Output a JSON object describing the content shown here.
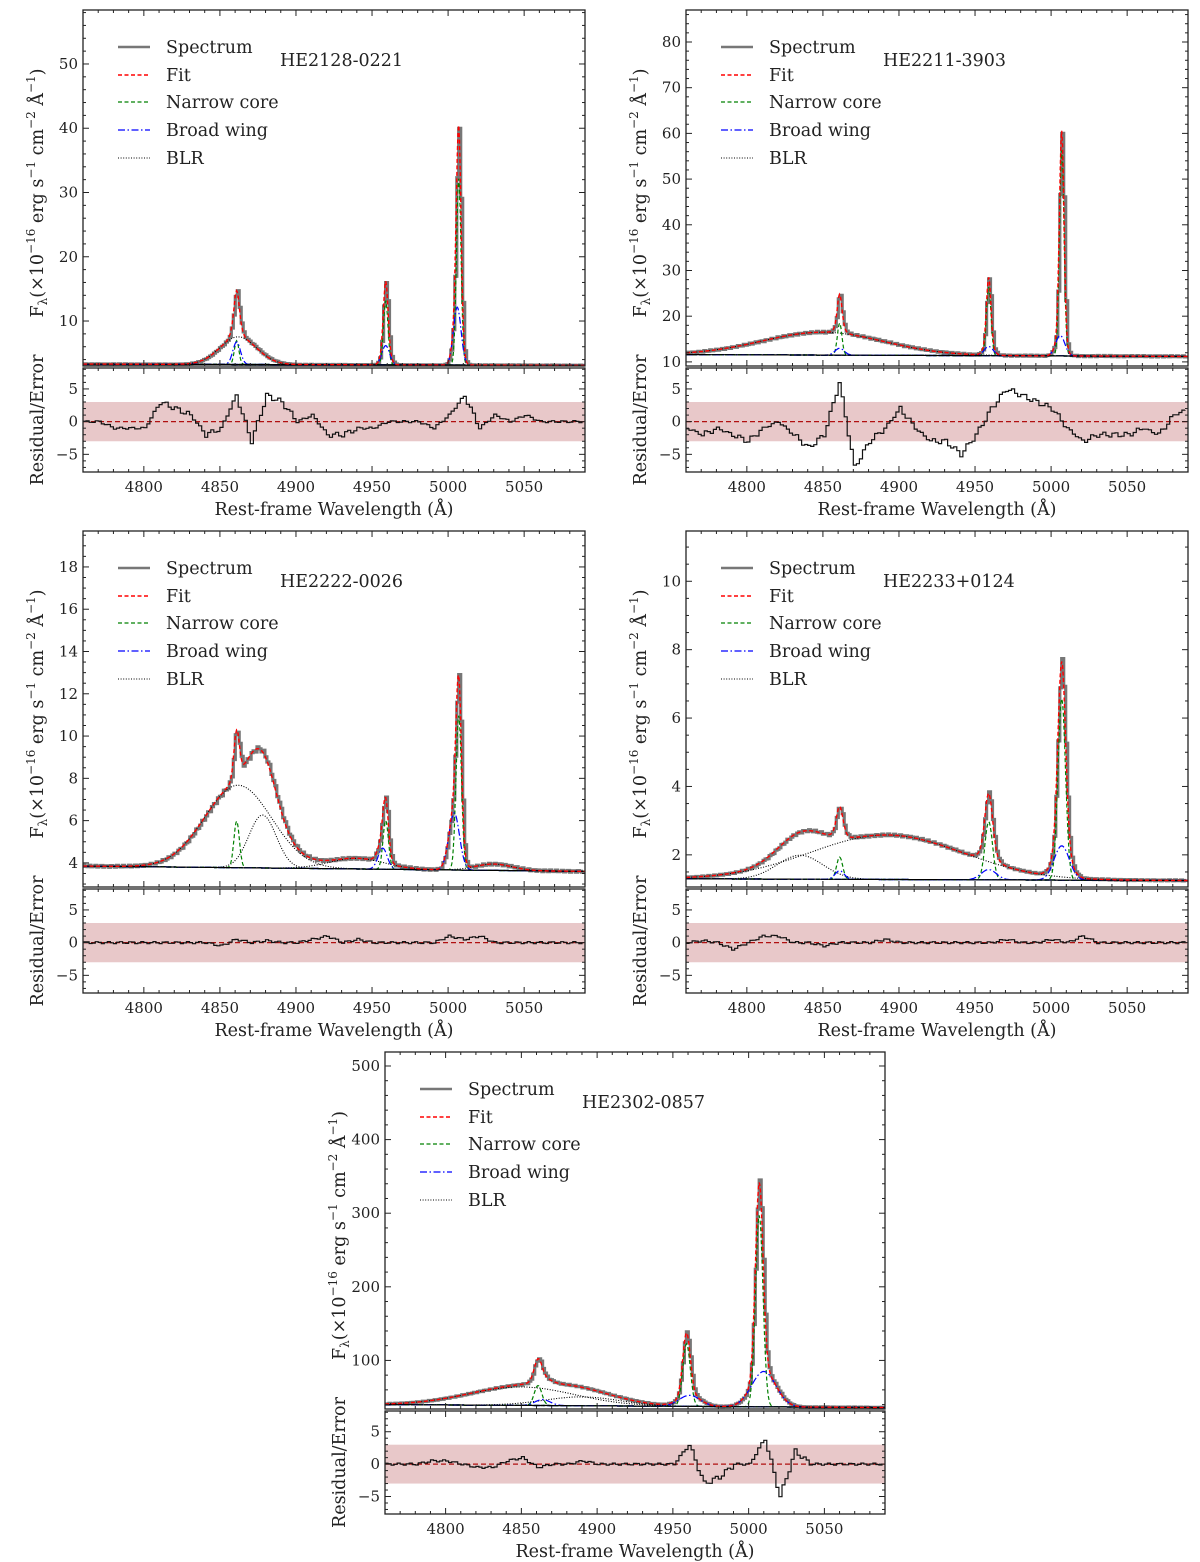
{
  "legend": [
    "Spectrum",
    "Fit",
    "Narrow core",
    "Broad wing",
    "BLR"
  ],
  "xlabel": "Rest-frame Wavelength (Å)",
  "ylabel": "F_{λ}(×10^{−16} erg s^{−1} cm^{−2} Å^{−1})",
  "residual_ylabel": "Residual/Error",
  "colors": {
    "spectrum": "#777777",
    "fit": "#ff0000",
    "narrow": "#008000",
    "wing": "#0000ff",
    "blr": "#000000",
    "band": "#e8c8c9",
    "zero": "#b01010"
  },
  "xticks": [
    4800,
    4850,
    4900,
    4950,
    5000,
    5050
  ],
  "xlim": [
    4760,
    5090
  ],
  "residual_axis": {
    "ylim": [
      -7.7,
      8.2
    ],
    "yticks": [
      -5,
      0,
      5
    ],
    "yticklabels": [
      "−5",
      "0",
      "5"
    ],
    "band": 3,
    "x_start": 4760,
    "x_step": 10
  },
  "chart_data": [
    {
      "type": "line",
      "title": "HE2128-0221",
      "ylim": [
        3,
        58.4
      ],
      "yticks": [
        10,
        20,
        30,
        40,
        50
      ],
      "yminor": 2,
      "continuum": [
        3.3,
        3.1
      ],
      "components": [
        {
          "kind": "blr",
          "center": 4862,
          "sigma": 12,
          "amp": 4.3
        },
        {
          "kind": "narrow",
          "center": 4861,
          "sigma": 1.5,
          "amp": 3.7
        },
        {
          "kind": "wing",
          "center": 4861,
          "sigma": 2.5,
          "amp": 3.5
        },
        {
          "kind": "narrow",
          "center": 4959,
          "sigma": 1.5,
          "amp": 10
        },
        {
          "kind": "wing",
          "center": 4959,
          "sigma": 2.5,
          "amp": 3
        },
        {
          "kind": "narrow",
          "center": 5007,
          "sigma": 1.5,
          "amp": 29
        },
        {
          "kind": "wing",
          "center": 5006,
          "sigma": 2.5,
          "amp": 9
        }
      ],
      "residual": [
        0,
        0,
        -1,
        -1,
        -1,
        3,
        2,
        1,
        -2,
        -1,
        4,
        -3,
        4,
        3,
        0,
        1,
        -2,
        -2,
        -1,
        -1,
        0,
        0,
        0,
        -1,
        1,
        4,
        -1,
        1,
        0,
        1,
        0,
        0,
        0,
        0
      ]
    },
    {
      "type": "line",
      "title": "HE2211-3903",
      "ylim": [
        9.1,
        87
      ],
      "yticks": [
        10,
        20,
        30,
        40,
        50,
        60,
        70,
        80
      ],
      "yminor": 2,
      "continuum": [
        11.6,
        11.2
      ],
      "components": [
        {
          "kind": "blr",
          "center": 4850,
          "sigma": 40,
          "amp": 5
        },
        {
          "kind": "narrow",
          "center": 4861,
          "sigma": 1.5,
          "amp": 7
        },
        {
          "kind": "wing",
          "center": 4861,
          "sigma": 3,
          "amp": 1.5
        },
        {
          "kind": "narrow",
          "center": 4959,
          "sigma": 1.5,
          "amp": 15
        },
        {
          "kind": "wing",
          "center": 4959,
          "sigma": 3,
          "amp": 2
        },
        {
          "kind": "narrow",
          "center": 5007,
          "sigma": 1.5,
          "amp": 45
        },
        {
          "kind": "wing",
          "center": 5006,
          "sigma": 3,
          "amp": 4.5
        }
      ],
      "residual": [
        -1,
        -2,
        -1,
        -2,
        -3,
        -1,
        0,
        -2,
        -4,
        -2,
        6,
        -7,
        -3,
        -1,
        2,
        -1,
        -3,
        -3,
        -5,
        -2,
        2,
        5,
        4,
        3,
        2,
        -1,
        -3,
        -2,
        -2,
        -2,
        -1,
        -2,
        1,
        2
      ]
    },
    {
      "type": "line",
      "title": "HE2222-0026",
      "ylim": [
        2.86,
        19.7
      ],
      "yticks": [
        4,
        6,
        8,
        10,
        12,
        14,
        16,
        18
      ],
      "yminor": 0.5,
      "continuum": [
        3.85,
        3.6
      ],
      "components": [
        {
          "kind": "blr",
          "center": 4862,
          "sigma": 22,
          "amp": 3.9
        },
        {
          "kind": "blr",
          "center": 4878,
          "sigma": 9,
          "amp": 2.5
        },
        {
          "kind": "blr",
          "center": 4940,
          "sigma": 18,
          "amp": 0.5
        },
        {
          "kind": "blr",
          "center": 5030,
          "sigma": 12,
          "amp": 0.3
        },
        {
          "kind": "narrow",
          "center": 4861,
          "sigma": 1.8,
          "amp": 2.2
        },
        {
          "kind": "narrow",
          "center": 4959,
          "sigma": 1.8,
          "amp": 2.3
        },
        {
          "kind": "wing",
          "center": 4957,
          "sigma": 3,
          "amp": 1
        },
        {
          "kind": "narrow",
          "center": 5007,
          "sigma": 1.8,
          "amp": 7.3
        },
        {
          "kind": "wing",
          "center": 5004,
          "sigma": 3.5,
          "amp": 2.7
        }
      ],
      "residual": [
        0,
        0,
        0,
        0,
        0,
        0,
        0,
        0,
        0,
        -0.5,
        0.5,
        0,
        0.3,
        0,
        0,
        0.5,
        1,
        0,
        0.5,
        0,
        0,
        0,
        0,
        0,
        1,
        0.5,
        1,
        0,
        0,
        0,
        0,
        0,
        0,
        0
      ]
    },
    {
      "type": "line",
      "title": "HE2233+0124",
      "ylim": [
        1.06,
        11.47
      ],
      "yticks": [
        2,
        4,
        6,
        8,
        10
      ],
      "yminor": 0.5,
      "continuum": [
        1.3,
        1.25
      ],
      "components": [
        {
          "kind": "blr",
          "center": 4892,
          "sigma": 50,
          "amp": 1.3
        },
        {
          "kind": "blr",
          "center": 4835,
          "sigma": 15,
          "amp": 0.7
        },
        {
          "kind": "narrow",
          "center": 4861,
          "sigma": 2,
          "amp": 0.65
        },
        {
          "kind": "wing",
          "center": 4861,
          "sigma": 3,
          "amp": 0.25
        },
        {
          "kind": "narrow",
          "center": 4959,
          "sigma": 2.5,
          "amp": 1.7
        },
        {
          "kind": "wing",
          "center": 4959,
          "sigma": 5,
          "amp": 0.3
        },
        {
          "kind": "narrow",
          "center": 5007,
          "sigma": 2.5,
          "amp": 5.3
        },
        {
          "kind": "wing",
          "center": 5007,
          "sigma": 5,
          "amp": 1
        }
      ],
      "residual": [
        0,
        0.3,
        0,
        -1,
        0,
        1,
        1,
        0,
        0,
        -0.5,
        0,
        0,
        0,
        0.5,
        0,
        0,
        0,
        0,
        0,
        0,
        0,
        0.5,
        0,
        0,
        0.5,
        0,
        1,
        0,
        0,
        0,
        0,
        0,
        0,
        0
      ]
    },
    {
      "type": "line",
      "title": "HE2302-0857",
      "ylim": [
        34,
        519
      ],
      "yticks": [
        100,
        200,
        300,
        400,
        500
      ],
      "yminor": 20,
      "continuum": [
        40,
        36
      ],
      "components": [
        {
          "kind": "blr",
          "center": 4850,
          "sigma": 35,
          "amp": 25
        },
        {
          "kind": "blr",
          "center": 4890,
          "sigma": 25,
          "amp": 12
        },
        {
          "kind": "narrow",
          "center": 4861,
          "sigma": 2.5,
          "amp": 27
        },
        {
          "kind": "wing",
          "center": 4864,
          "sigma": 5,
          "amp": 8
        },
        {
          "kind": "narrow",
          "center": 4959,
          "sigma": 2.5,
          "amp": 85
        },
        {
          "kind": "wing",
          "center": 4961,
          "sigma": 7,
          "amp": 15
        },
        {
          "kind": "narrow",
          "center": 5007,
          "sigma": 2.5,
          "amp": 260
        },
        {
          "kind": "wing",
          "center": 5010,
          "sigma": 8,
          "amp": 48
        }
      ],
      "residual": [
        0,
        0,
        0,
        0.5,
        0.5,
        0,
        -0.5,
        -0.5,
        0.5,
        1,
        -0.5,
        0,
        0,
        0.5,
        0,
        0,
        0,
        0,
        0,
        0,
        3,
        -3,
        -2,
        0,
        0,
        4,
        -5,
        2,
        0,
        0,
        0,
        0,
        0,
        0
      ]
    }
  ]
}
